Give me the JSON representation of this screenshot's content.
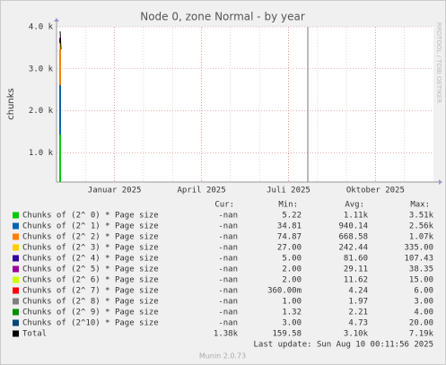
{
  "chart_data": {
    "type": "area",
    "title": "Node 0, zone Normal - by year",
    "y_label": "chunks",
    "ylim": [
      300,
      4000
    ],
    "yticks": [
      {
        "value": 1000,
        "label": "1.0 k"
      },
      {
        "value": 2000,
        "label": "2.0 k"
      },
      {
        "value": 3000,
        "label": "3.0 k"
      },
      {
        "value": 4000,
        "label": "4.0 k"
      }
    ],
    "xlim": [
      "2024-11",
      "2025-12"
    ],
    "xticks": [
      {
        "value": "2025-01",
        "label": "Januar 2025"
      },
      {
        "value": "2025-04",
        "label": "April 2025"
      },
      {
        "value": "2025-07",
        "label": "Juli 2025"
      },
      {
        "value": "2025-10",
        "label": "Oktober 2025"
      }
    ],
    "grid": true,
    "legend_headers": [
      "Cur:",
      "Min:",
      "Avg:",
      "Max:"
    ],
    "series": [
      {
        "name": "Chunks of (2^ 0) * Page size",
        "color": "#00cc00",
        "stats": [
          "-nan",
          "5.22",
          "1.11k",
          "3.51k"
        ]
      },
      {
        "name": "Chunks of (2^ 1) * Page size",
        "color": "#0066b3",
        "stats": [
          "-nan",
          "34.81",
          "940.14",
          "2.56k"
        ]
      },
      {
        "name": "Chunks of (2^ 2) * Page size",
        "color": "#ff8000",
        "stats": [
          "-nan",
          "74.87",
          "668.58",
          "1.07k"
        ]
      },
      {
        "name": "Chunks of (2^ 3) * Page size",
        "color": "#ffcc00",
        "stats": [
          "-nan",
          "27.00",
          "242.44",
          "335.00"
        ]
      },
      {
        "name": "Chunks of (2^ 4) * Page size",
        "color": "#330099",
        "stats": [
          "-nan",
          "5.00",
          "81.60",
          "107.43"
        ]
      },
      {
        "name": "Chunks of (2^ 5) * Page size",
        "color": "#990099",
        "stats": [
          "-nan",
          "2.00",
          "29.11",
          "38.35"
        ]
      },
      {
        "name": "Chunks of (2^ 6) * Page size",
        "color": "#ccff00",
        "stats": [
          "-nan",
          "2.00",
          "11.62",
          "15.00"
        ]
      },
      {
        "name": "Chunks of (2^ 7) * Page size",
        "color": "#ff0000",
        "stats": [
          "-nan",
          "360.00m",
          "4.24",
          "6.00"
        ]
      },
      {
        "name": "Chunks of (2^ 8) * Page size",
        "color": "#808080",
        "stats": [
          "-nan",
          "1.00",
          "1.97",
          "3.00"
        ]
      },
      {
        "name": "Chunks of (2^ 9) * Page size",
        "color": "#008f00",
        "stats": [
          "-nan",
          "1.32",
          "2.21",
          "4.00"
        ]
      },
      {
        "name": "Chunks of (2^10) * Page size",
        "color": "#00487d",
        "stats": [
          "-nan",
          "3.00",
          "4.73",
          "20.00"
        ]
      },
      {
        "name": "Total",
        "color": "#000000",
        "stats": [
          "1.38k",
          "159.58",
          "3.10k",
          "7.19k"
        ]
      }
    ],
    "last_update": "Last update: Sun Aug 10 00:11:56 2025",
    "watermark": "RRDTOOL / TOBI OETIKER",
    "footer": "Munin 2.0.73"
  }
}
